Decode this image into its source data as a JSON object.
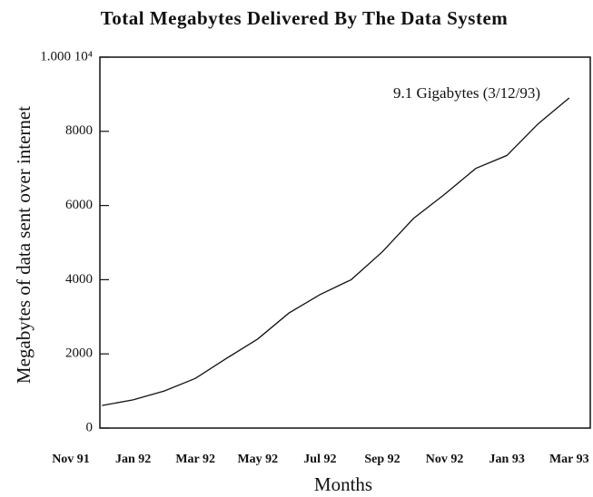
{
  "chart_data": {
    "type": "line",
    "title": "Total Megabytes Delivered By The Data System",
    "x_label": "Months",
    "y_label": "Megabytes of data sent over internet",
    "annotation": "9.1 Gigabytes (3/12/93)",
    "categories": [
      "Nov 91",
      null,
      "Jan 92",
      null,
      "Mar 92",
      null,
      "May 92",
      null,
      "Jul 92",
      null,
      "Sep 92",
      null,
      "Nov 92",
      null,
      "Jan 93",
      null,
      "Mar 93"
    ],
    "values": [
      null,
      610,
      760,
      1000,
      1340,
      1880,
      2400,
      3100,
      3600,
      4000,
      4750,
      5650,
      6300,
      7000,
      7350,
      8200,
      8900
    ],
    "color": "#111111",
    "ylim": [
      0,
      10000
    ],
    "yticks": [
      0,
      2000,
      4000,
      6000,
      8000,
      {
        "value": 10000,
        "label": "1.000 10⁴"
      }
    ]
  }
}
